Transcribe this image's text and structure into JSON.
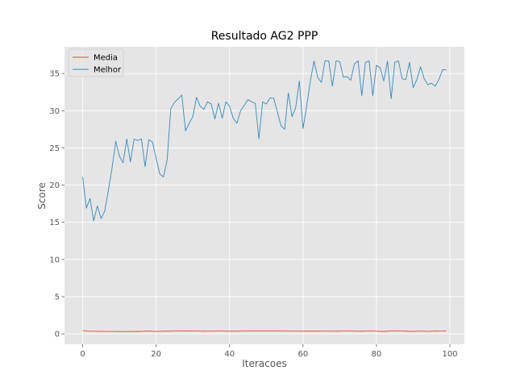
{
  "chart_data": {
    "type": "line",
    "title": "Resultado AG2 PPP",
    "xlabel": "Iteracoes",
    "ylabel": "Score",
    "xlim": [
      -4.95,
      103.95
    ],
    "ylim": [
      -1.4,
      38.6
    ],
    "xticks": [
      0,
      20,
      40,
      60,
      80,
      100
    ],
    "yticks": [
      0,
      5,
      10,
      15,
      20,
      25,
      30,
      35
    ],
    "grid": true,
    "legend_position": "top-left",
    "colors": {
      "background": "#e5e5e5",
      "grid": "#ffffff",
      "Media": "#e24a33",
      "Melhor": "#348abd"
    },
    "series": [
      {
        "name": "Media",
        "x": [
          0,
          1,
          2,
          3,
          4,
          5,
          6,
          7,
          8,
          9,
          10,
          11,
          12,
          13,
          14,
          15,
          16,
          17,
          18,
          19,
          20,
          21,
          22,
          23,
          24,
          25,
          26,
          27,
          28,
          29,
          30,
          31,
          32,
          33,
          34,
          35,
          36,
          37,
          38,
          39,
          40,
          41,
          42,
          43,
          44,
          45,
          46,
          47,
          48,
          49,
          50,
          51,
          52,
          53,
          54,
          55,
          56,
          57,
          58,
          59,
          60,
          61,
          62,
          63,
          64,
          65,
          66,
          67,
          68,
          69,
          70,
          71,
          72,
          73,
          74,
          75,
          76,
          77,
          78,
          79,
          80,
          81,
          82,
          83,
          84,
          85,
          86,
          87,
          88,
          89,
          90,
          91,
          92,
          93,
          94,
          95,
          96,
          97,
          98,
          99
        ],
        "y": [
          0.45,
          0.38,
          0.35,
          0.35,
          0.34,
          0.34,
          0.33,
          0.33,
          0.33,
          0.32,
          0.32,
          0.31,
          0.31,
          0.32,
          0.32,
          0.32,
          0.33,
          0.38,
          0.36,
          0.35,
          0.33,
          0.34,
          0.36,
          0.36,
          0.37,
          0.38,
          0.38,
          0.38,
          0.38,
          0.39,
          0.38,
          0.38,
          0.37,
          0.36,
          0.37,
          0.37,
          0.37,
          0.38,
          0.38,
          0.37,
          0.36,
          0.35,
          0.36,
          0.37,
          0.38,
          0.38,
          0.38,
          0.38,
          0.38,
          0.38,
          0.38,
          0.38,
          0.38,
          0.38,
          0.38,
          0.38,
          0.37,
          0.37,
          0.37,
          0.37,
          0.36,
          0.36,
          0.36,
          0.36,
          0.36,
          0.37,
          0.37,
          0.37,
          0.37,
          0.36,
          0.37,
          0.38,
          0.38,
          0.38,
          0.37,
          0.35,
          0.36,
          0.37,
          0.38,
          0.38,
          0.37,
          0.34,
          0.32,
          0.36,
          0.38,
          0.38,
          0.38,
          0.38,
          0.36,
          0.34,
          0.32,
          0.35,
          0.38,
          0.35,
          0.33,
          0.37,
          0.38,
          0.37,
          0.38,
          0.38
        ]
      },
      {
        "name": "Melhor",
        "x": [
          0,
          1,
          2,
          3,
          4,
          5,
          6,
          7,
          8,
          9,
          10,
          11,
          12,
          13,
          14,
          15,
          16,
          17,
          18,
          19,
          20,
          21,
          22,
          23,
          24,
          25,
          26,
          27,
          28,
          29,
          30,
          31,
          32,
          33,
          34,
          35,
          36,
          37,
          38,
          39,
          40,
          41,
          42,
          43,
          44,
          45,
          46,
          47,
          48,
          49,
          50,
          51,
          52,
          53,
          54,
          55,
          56,
          57,
          58,
          59,
          60,
          61,
          62,
          63,
          64,
          65,
          66,
          67,
          68,
          69,
          70,
          71,
          72,
          73,
          74,
          75,
          76,
          77,
          78,
          79,
          80,
          81,
          82,
          83,
          84,
          85,
          86,
          87,
          88,
          89,
          90,
          91,
          92,
          93,
          94,
          95,
          96,
          97,
          98,
          99
        ],
        "y": [
          21.1,
          16.9,
          18.2,
          15.2,
          17.2,
          15.5,
          16.5,
          19.3,
          22.3,
          25.9,
          23.9,
          23.0,
          26.2,
          23.1,
          26.2,
          26.0,
          26.2,
          22.5,
          26.1,
          25.8,
          23.6,
          21.5,
          21.1,
          23.4,
          30.3,
          31.1,
          31.6,
          32.1,
          27.3,
          28.3,
          29.2,
          31.8,
          30.6,
          30.2,
          31.2,
          30.9,
          28.9,
          31.0,
          29.0,
          31.2,
          30.6,
          29.0,
          28.3,
          30.0,
          30.7,
          31.5,
          31.2,
          31.0,
          26.2,
          31.2,
          30.9,
          31.7,
          31.7,
          29.9,
          28.0,
          27.5,
          32.4,
          29.2,
          30.4,
          34.0,
          27.6,
          30.6,
          34.0,
          36.7,
          34.5,
          33.8,
          36.7,
          36.7,
          33.3,
          36.7,
          36.6,
          34.5,
          34.6,
          34.1,
          36.3,
          36.7,
          32.0,
          36.5,
          36.7,
          32.0,
          36.1,
          35.8,
          34.0,
          36.7,
          31.6,
          36.5,
          36.7,
          34.3,
          34.2,
          36.5,
          33.1,
          34.2,
          35.9,
          34.3,
          33.5,
          33.7,
          33.3,
          34.2,
          35.5,
          35.5
        ]
      }
    ]
  }
}
